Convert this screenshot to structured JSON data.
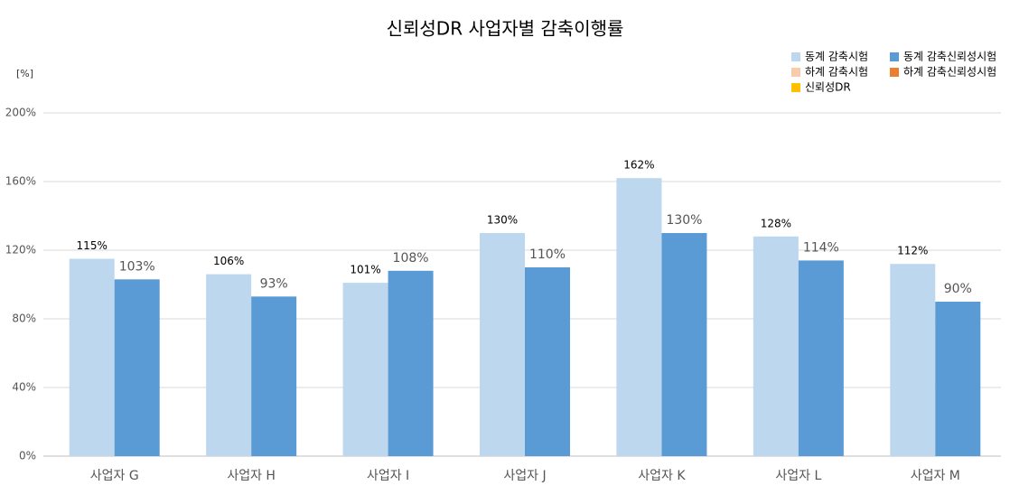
{
  "chart_data": {
    "type": "bar",
    "title": "신뢰성DR 사업자별 감축이행률",
    "y_unit": "[%]",
    "categories": [
      "사업자 G",
      "사업자 H",
      "사업자 I",
      "사업자 J",
      "사업자 K",
      "사업자 L",
      "사업자 M"
    ],
    "series": [
      {
        "name": "동계 감축시험",
        "color": "#bdd7ee",
        "values": [
          115,
          106,
          101,
          130,
          162,
          128,
          112
        ],
        "value_labels": [
          "115%",
          "106%",
          "101%",
          "130%",
          "162%",
          "128%",
          "112%"
        ]
      },
      {
        "name": "동계 감축신뢰성시험",
        "color": "#5b9bd5",
        "values": [
          103,
          93,
          108,
          110,
          130,
          114,
          90
        ],
        "value_labels": [
          "103%",
          "93%",
          "108%",
          "110%",
          "130%",
          "114%",
          "90%"
        ]
      },
      {
        "name": "하계 감축시험",
        "color": "#f8cbad",
        "values": [
          null,
          null,
          null,
          null,
          null,
          null,
          null
        ]
      },
      {
        "name": "하계 감축신뢰성시험",
        "color": "#ed7d31",
        "values": [
          null,
          null,
          null,
          null,
          null,
          null,
          null
        ]
      },
      {
        "name": "신뢰성DR",
        "color": "#ffc000",
        "values": [
          null,
          null,
          null,
          null,
          null,
          null,
          null
        ]
      }
    ],
    "ylim": [
      0,
      200
    ],
    "yticks": [
      {
        "value": 0,
        "label": "0%"
      },
      {
        "value": 40,
        "label": "40%"
      },
      {
        "value": 80,
        "label": "80%"
      },
      {
        "value": 120,
        "label": "120%"
      },
      {
        "value": 160,
        "label": "160%"
      },
      {
        "value": 200,
        "label": "200%"
      }
    ],
    "grid": true,
    "legend": "top-right"
  }
}
